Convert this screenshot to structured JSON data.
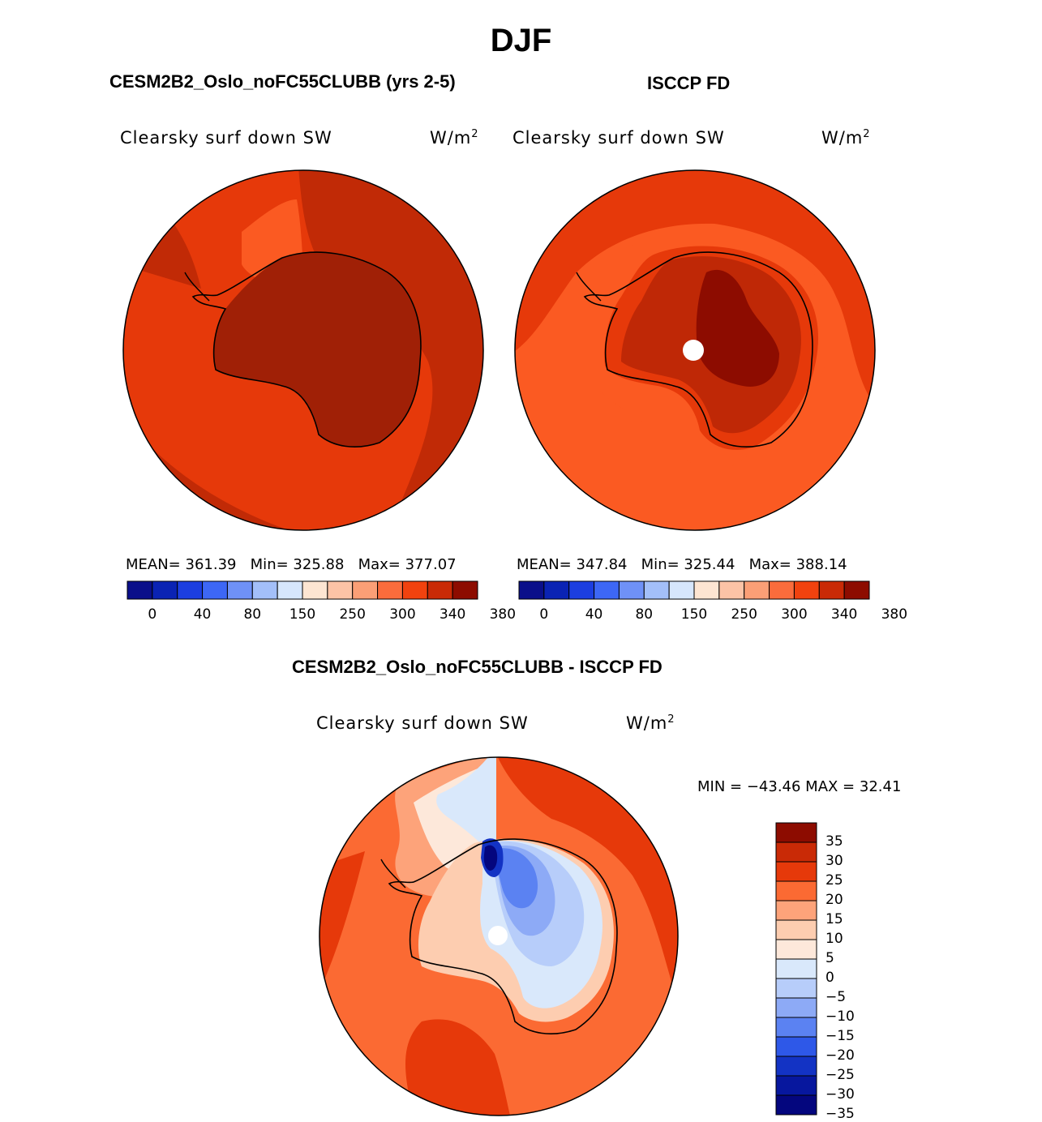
{
  "figure": {
    "season": "DJF",
    "variable": "Clearsky surf down SW",
    "units_base": "W/m",
    "units_exp": "2"
  },
  "panels": [
    {
      "title": "CESM2B2_Oslo_noFC55CLUBB (yrs 2-5)",
      "mean_label": "MEAN=",
      "mean": "361.39",
      "min_label": "Min=",
      "min": "325.88",
      "max_label": "Max=",
      "max": "377.07"
    },
    {
      "title": "ISCCP FD",
      "mean_label": "MEAN=",
      "mean": "347.84",
      "min_label": "Min=",
      "min": "325.44",
      "max_label": "Max=",
      "max": "388.14"
    }
  ],
  "difference": {
    "title": "CESM2B2_Oslo_noFC55CLUBB - ISCCP FD",
    "minmax_text": "MIN = −43.46 MAX =  32.41"
  },
  "colorbar_abs": {
    "colors": [
      "#0a0f8a",
      "#0a23b4",
      "#1c3ee0",
      "#3d67f5",
      "#6f91f7",
      "#a3bff9",
      "#d6e6fc",
      "#fde5d2",
      "#fcc3a6",
      "#fb9f76",
      "#fa6c3c",
      "#f1420e",
      "#c92a06",
      "#8d0c00"
    ],
    "labels": [
      "0",
      "40",
      "80",
      "150",
      "250",
      "300",
      "340",
      "380"
    ]
  },
  "colorbar_diff": {
    "colors": [
      "#8d0c00",
      "#c92a06",
      "#e6390a",
      "#fb6a33",
      "#fda37a",
      "#fdcdb0",
      "#fde8da",
      "#d9e8fb",
      "#b7cdfa",
      "#8daaf6",
      "#5b82f2",
      "#2e58e8",
      "#1333c4",
      "#07179e",
      "#04067e"
    ],
    "labels": [
      "35",
      "30",
      "25",
      "20",
      "15",
      "10",
      "5",
      "0",
      "−5",
      "−10",
      "−15",
      "−20",
      "−25",
      "−30",
      "−35"
    ]
  }
}
